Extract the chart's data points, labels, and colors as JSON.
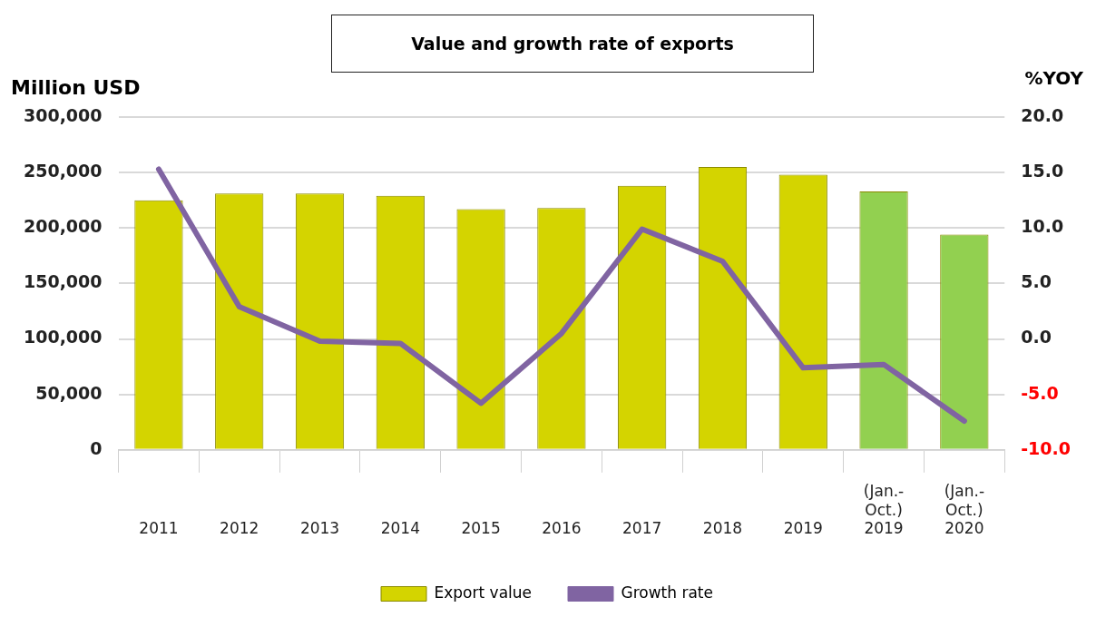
{
  "chart_data": {
    "type": "bar",
    "title": "Value and growth rate of exports",
    "ylabel": "Million USD",
    "y2label": "%YOY",
    "categories": [
      "2011",
      "2012",
      "2013",
      "2014",
      "2015",
      "2016",
      "2017",
      "2018",
      "2019",
      "(Jan.-\nOct.)\n2019",
      "(Jan.-\nOct.)\n2020"
    ],
    "series": [
      {
        "name": "Export value",
        "type": "bar",
        "colors": [
          "#d4d400",
          "#d4d400",
          "#d4d400",
          "#d4d400",
          "#d4d400",
          "#d4d400",
          "#d4d400",
          "#d4d400",
          "#d4d400",
          "#92d050",
          "#92d050"
        ],
        "color": "#d4d400",
        "values": [
          225000,
          231000,
          231000,
          229000,
          217000,
          218000,
          238000,
          255000,
          248000,
          233000,
          194000
        ]
      },
      {
        "name": "Growth rate",
        "type": "line",
        "axis": "y2",
        "color": "#8064a2",
        "values": [
          15.3,
          2.9,
          -0.2,
          -0.4,
          -5.8,
          0.5,
          9.9,
          7.0,
          -2.6,
          -2.3,
          -7.4
        ]
      }
    ],
    "ylim": [
      0,
      300000
    ],
    "yticks": [
      {
        "value": 0,
        "label": "0"
      },
      {
        "value": 50000,
        "label": "50,000"
      },
      {
        "value": 100000,
        "label": "100,000"
      },
      {
        "value": 150000,
        "label": "150,000"
      },
      {
        "value": 200000,
        "label": "200,000"
      },
      {
        "value": 250000,
        "label": "250,000"
      },
      {
        "value": 300000,
        "label": "300,000"
      }
    ],
    "y2lim": [
      -10,
      20
    ],
    "y2ticks": [
      {
        "value": -10,
        "label": "-10.0"
      },
      {
        "value": -5,
        "label": "-5.0"
      },
      {
        "value": 0,
        "label": "0.0"
      },
      {
        "value": 5,
        "label": "5.0"
      },
      {
        "value": 10,
        "label": "10.0"
      },
      {
        "value": 15,
        "label": "15.0"
      },
      {
        "value": 20,
        "label": "20.0"
      }
    ],
    "grid": "y",
    "legend": "bottom",
    "marker": "none",
    "line_style": "solid"
  }
}
